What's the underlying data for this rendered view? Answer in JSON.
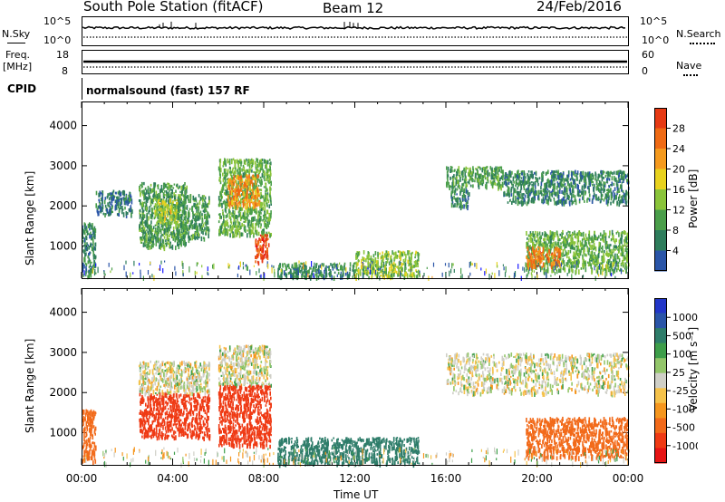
{
  "header": {
    "station": "South Pole Station (fitACF)",
    "beam": "Beam 12",
    "date": "24/Feb/2016"
  },
  "strip_nsky": {
    "left_label": "N.Sky",
    "right_label": "N.Search",
    "left_ticks": [
      "10^5",
      "10^0"
    ],
    "right_ticks": [
      "10^5",
      "10^0"
    ]
  },
  "strip_freq": {
    "left_label_1": "Freq.",
    "left_label_2": "[MHz]",
    "right_label": "Nave",
    "left_ticks": [
      "18",
      "8"
    ],
    "right_ticks": [
      "60",
      "0"
    ]
  },
  "cpid": {
    "label": "CPID",
    "value": "normalsound (fast) 157 RF"
  },
  "colors": {
    "power_scale": [
      "#1a1aff",
      "#2a55a8",
      "#2e7d5c",
      "#4a9e4a",
      "#8ac43a",
      "#e8d21e",
      "#f59a1e",
      "#ef6a14",
      "#e63a14",
      "#e61414"
    ],
    "velocity_scale": [
      "#e61414",
      "#ef3a14",
      "#f26a1a",
      "#f5961e",
      "#f5c24a",
      "#cfcfc7",
      "#93c66a",
      "#3e9e4a",
      "#2e7d6a",
      "#2a55a8",
      "#2236c8"
    ]
  },
  "chart_data": [
    {
      "type": "heatmap",
      "name": "power",
      "ylabel": "Slant Range [km]",
      "y_ticks": [
        "1000",
        "2000",
        "3000",
        "4000"
      ],
      "x_ticks": [
        "00:00",
        "04:00",
        "08:00",
        "12:00",
        "16:00",
        "20:00",
        "00:00"
      ],
      "colorbar_label": "Power [dB]",
      "colorbar_ticks": [
        "4",
        "8",
        "12",
        "16",
        "20",
        "24",
        "28"
      ],
      "ylim": [
        200,
        4600
      ],
      "colorbar_range": [
        0,
        32
      ],
      "regions": [
        {
          "t0": 0.0,
          "t1": 0.6,
          "r0": 300,
          "r1": 1600,
          "power": 8
        },
        {
          "t0": 0.6,
          "t1": 2.2,
          "r0": 1800,
          "r1": 2400,
          "power": 6
        },
        {
          "t0": 2.5,
          "t1": 4.6,
          "r0": 1000,
          "r1": 2600,
          "power": 10
        },
        {
          "t0": 3.2,
          "t1": 4.2,
          "r0": 1600,
          "r1": 2200,
          "power": 16
        },
        {
          "t0": 4.2,
          "t1": 5.6,
          "r0": 1200,
          "r1": 2300,
          "power": 10
        },
        {
          "t0": 6.0,
          "t1": 8.3,
          "r0": 1300,
          "r1": 3200,
          "power": 12
        },
        {
          "t0": 6.4,
          "t1": 7.8,
          "r0": 2000,
          "r1": 2800,
          "power": 22
        },
        {
          "t0": 7.6,
          "t1": 8.2,
          "r0": 600,
          "r1": 1300,
          "power": 28
        },
        {
          "t0": 8.6,
          "t1": 12.0,
          "r0": 250,
          "r1": 600,
          "power": 8
        },
        {
          "t0": 12.0,
          "t1": 14.8,
          "r0": 250,
          "r1": 900,
          "power": 14
        },
        {
          "t0": 16.0,
          "t1": 18.5,
          "r0": 2500,
          "r1": 3000,
          "power": 10
        },
        {
          "t0": 16.2,
          "t1": 17.0,
          "r0": 2000,
          "r1": 2500,
          "power": 8
        },
        {
          "t0": 18.5,
          "t1": 24.0,
          "r0": 2100,
          "r1": 2900,
          "power": 8
        },
        {
          "t0": 19.5,
          "t1": 24.0,
          "r0": 400,
          "r1": 1400,
          "power": 12
        },
        {
          "t0": 19.5,
          "t1": 21.0,
          "r0": 500,
          "r1": 1000,
          "power": 24
        }
      ]
    },
    {
      "type": "heatmap",
      "name": "velocity",
      "ylabel": "Slant Range [km]",
      "xlabel": "Time UT",
      "y_ticks": [
        "1000",
        "2000",
        "3000",
        "4000"
      ],
      "x_ticks": [
        "00:00",
        "04:00",
        "08:00",
        "12:00",
        "16:00",
        "20:00",
        "00:00"
      ],
      "colorbar_label": "Velocity [m s⁻¹]",
      "colorbar_ticks": [
        "1000",
        "500",
        "100",
        "25",
        "-25",
        "-100",
        "-500",
        "-1000"
      ],
      "ylim": [
        200,
        4600
      ],
      "regions": [
        {
          "t0": 0.0,
          "t1": 0.6,
          "r0": 300,
          "r1": 1600,
          "velocity": -400
        },
        {
          "t0": 2.5,
          "t1": 5.6,
          "r0": 2000,
          "r1": 2800,
          "velocity": 0
        },
        {
          "t0": 2.5,
          "t1": 5.6,
          "r0": 900,
          "r1": 2000,
          "velocity": -600
        },
        {
          "t0": 6.0,
          "t1": 8.3,
          "r0": 2200,
          "r1": 3200,
          "velocity": 0
        },
        {
          "t0": 6.0,
          "t1": 8.3,
          "r0": 700,
          "r1": 2200,
          "velocity": -700
        },
        {
          "t0": 8.6,
          "t1": 14.8,
          "r0": 250,
          "r1": 900,
          "velocity": 300
        },
        {
          "t0": 16.0,
          "t1": 24.0,
          "r0": 2000,
          "r1": 3000,
          "velocity": 0
        },
        {
          "t0": 19.5,
          "t1": 24.0,
          "r0": 400,
          "r1": 1400,
          "velocity": -400
        }
      ]
    }
  ]
}
